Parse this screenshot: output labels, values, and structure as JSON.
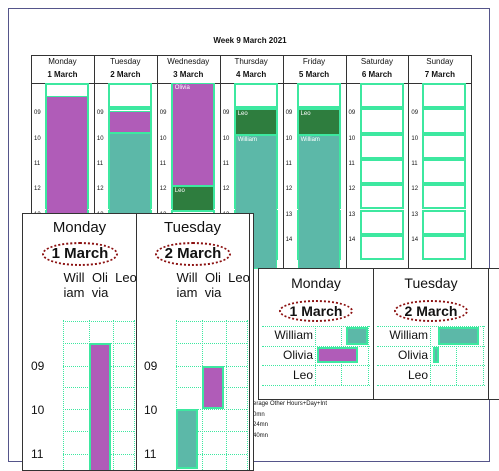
{
  "main": {
    "title": "Week 9  March 2021",
    "days": [
      {
        "name": "Monday",
        "date": "1 March",
        "events": []
      },
      {
        "name": "Tuesday",
        "date": "2 March",
        "events": []
      },
      {
        "name": "Wednesday",
        "date": "3 March",
        "events": [
          "Olivia",
          "Leo"
        ]
      },
      {
        "name": "Thursday",
        "date": "4 March",
        "events": [
          "Leo",
          "William"
        ]
      },
      {
        "name": "Friday",
        "date": "5 March",
        "events": [
          "Leo",
          "William"
        ]
      },
      {
        "name": "Saturday",
        "date": "6 March",
        "events": []
      },
      {
        "name": "Sunday",
        "date": "7 March",
        "events": []
      }
    ],
    "hours": [
      "09",
      "10",
      "11",
      "12",
      "13",
      "14"
    ]
  },
  "footer": [
    "erage   Other   Hours+Day+Int",
    "0mn",
    "24mn",
    "40mn"
  ],
  "panel_a": {
    "days": [
      {
        "name": "Monday",
        "date": "1 March"
      },
      {
        "name": "Tuesday",
        "date": "2 March"
      }
    ],
    "people": [
      "William",
      "Olivia",
      "Leo"
    ],
    "hours": [
      "09",
      "10",
      "11"
    ]
  },
  "panel_b": {
    "days": [
      {
        "name": "Monday",
        "date": "1 March"
      },
      {
        "name": "Tuesday",
        "date": "2 March"
      }
    ],
    "people": [
      "William",
      "Olivia",
      "Leo"
    ]
  }
}
